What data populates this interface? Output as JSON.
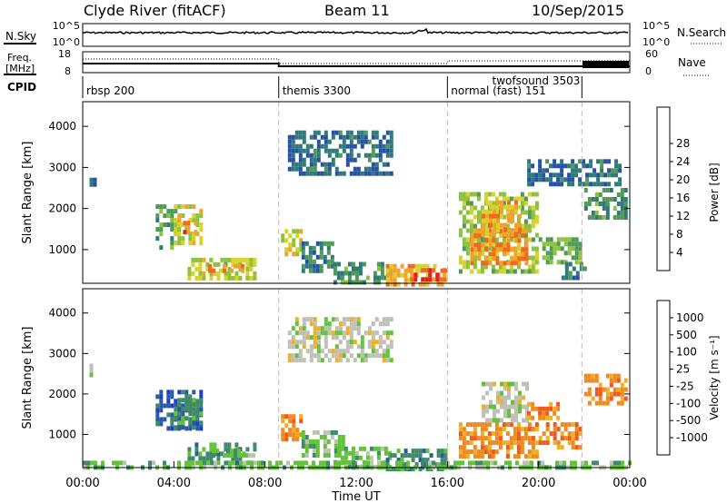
{
  "header": {
    "title": "Clyde River (fitACF)",
    "beam": "Beam 11",
    "date": "10/Sep/2015"
  },
  "top_panels": {
    "nsky_label": "N.Sky",
    "nsearch_label": "N.Search",
    "noise_ticks_left": [
      "10^5",
      "10^0"
    ],
    "noise_ticks_right": [
      "10^5",
      "10^0"
    ],
    "freq_label_1": "Freq.",
    "freq_label_2": "[MHz]",
    "freq_ticks": [
      "18",
      "8"
    ],
    "nave_label": "Nave",
    "nave_ticks": [
      "60",
      "0"
    ],
    "cpid_label": "CPID",
    "cpid_segments": [
      {
        "label": "rbsp 200",
        "start_h": 0.0
      },
      {
        "label": "themis 3300",
        "start_h": 8.6
      },
      {
        "label": "normal (fast) 151",
        "start_h": 16.0
      },
      {
        "label": "twofsound 3503",
        "start_h": 17.8
      }
    ],
    "mode_boundaries_h": [
      8.6,
      16.0,
      21.9
    ]
  },
  "chart_data": [
    {
      "type": "heatmap",
      "title": "",
      "ylabel": "Slant Range [km]",
      "xlabel": "",
      "xlim": [
        0,
        24
      ],
      "ylim": [
        180,
        4600
      ],
      "yticks": [
        "1000",
        "2000",
        "3000",
        "4000"
      ],
      "colorbar_label": "Power [dB]",
      "colorbar_ticks": [
        "4",
        "8",
        "12",
        "16",
        "20",
        "24",
        "28"
      ],
      "colorbar_range": [
        0,
        30
      ],
      "colorbar_colors": [
        "#1f3fd8",
        "#2552a8",
        "#2f7a78",
        "#4f9a56",
        "#8cc23c",
        "#d8d22a",
        "#f2a12a",
        "#ef6a1f",
        "#e0201a"
      ],
      "regions": [
        {
          "t": [
            0.3,
            0.6
          ],
          "r": [
            2450,
            2750
          ],
          "v": 6
        },
        {
          "t": [
            3.2,
            4.0
          ],
          "r": [
            1100,
            2100
          ],
          "v": 11
        },
        {
          "t": [
            4.0,
            5.2
          ],
          "r": [
            1200,
            2100
          ],
          "v": 18
        },
        {
          "t": [
            4.4,
            5.0
          ],
          "r": [
            1300,
            1700
          ],
          "v": 25
        },
        {
          "t": [
            4.6,
            7.6
          ],
          "r": [
            350,
            800
          ],
          "v": 17
        },
        {
          "t": [
            5.5,
            7.0
          ],
          "r": [
            450,
            650
          ],
          "v": 24
        },
        {
          "t": [
            8.7,
            9.6
          ],
          "r": [
            900,
            1500
          ],
          "v": 18
        },
        {
          "t": [
            9.6,
            11.0
          ],
          "r": [
            500,
            1200
          ],
          "v": 8
        },
        {
          "t": [
            11.0,
            13.5
          ],
          "r": [
            250,
            700
          ],
          "v": 10
        },
        {
          "t": [
            13.3,
            16.0
          ],
          "r": [
            200,
            650
          ],
          "v": 22
        },
        {
          "t": [
            14.2,
            15.8
          ],
          "r": [
            250,
            550
          ],
          "v": 27
        },
        {
          "t": [
            16.5,
            20.0
          ],
          "r": [
            500,
            2400
          ],
          "v": 16
        },
        {
          "t": [
            17.0,
            19.5
          ],
          "r": [
            700,
            1500
          ],
          "v": 24
        },
        {
          "t": [
            17.5,
            19.2
          ],
          "r": [
            1400,
            2200
          ],
          "v": 22
        },
        {
          "t": [
            20.0,
            21.8
          ],
          "r": [
            700,
            1300
          ],
          "v": 13
        },
        {
          "t": [
            22.0,
            23.8
          ],
          "r": [
            1800,
            2500
          ],
          "v": 10
        },
        {
          "t": [
            21.0,
            22.0
          ],
          "r": [
            300,
            700
          ],
          "v": 9
        },
        {
          "t": [
            9.0,
            13.5
          ],
          "r": [
            2800,
            3900
          ],
          "v": 6
        },
        {
          "t": [
            19.5,
            23.5
          ],
          "r": [
            2600,
            3200
          ],
          "v": 6
        }
      ]
    },
    {
      "type": "heatmap",
      "title": "",
      "ylabel": "Slant Range [km]",
      "xlabel": "Time UT",
      "xlim": [
        0,
        24
      ],
      "ylim": [
        180,
        4600
      ],
      "xticks": [
        "00:00",
        "04:00",
        "08:00",
        "12:00",
        "16:00",
        "20:00",
        "00:00"
      ],
      "yticks": [
        "1000",
        "2000",
        "3000",
        "4000"
      ],
      "colorbar_label": "Velocity [m s⁻¹]",
      "colorbar_ticks": [
        "1000",
        "500",
        "100",
        "25",
        "-25",
        "-100",
        "-500",
        "-1000"
      ],
      "colorbar_colors": [
        "#1a3fd0",
        "#2c5aa0",
        "#3f8a6a",
        "#61c33a",
        "#c0c0b8",
        "#f0b020",
        "#f08a20",
        "#ef5a1a",
        "#e01818"
      ],
      "regions": [
        {
          "t": [
            0.3,
            0.6
          ],
          "r": [
            2450,
            2750
          ],
          "c": 4
        },
        {
          "t": [
            3.2,
            5.2
          ],
          "r": [
            1100,
            2100
          ],
          "c": 1
        },
        {
          "t": [
            4.0,
            5.2
          ],
          "r": [
            1200,
            1900
          ],
          "c": 2
        },
        {
          "t": [
            4.6,
            7.6
          ],
          "r": [
            350,
            800
          ],
          "c": 2
        },
        {
          "t": [
            5.5,
            7.5
          ],
          "r": [
            450,
            650
          ],
          "c": 3
        },
        {
          "t": [
            8.7,
            9.6
          ],
          "r": [
            900,
            1500
          ],
          "c": 6
        },
        {
          "t": [
            9.6,
            11.5
          ],
          "r": [
            500,
            1100
          ],
          "c": 3
        },
        {
          "t": [
            11.0,
            13.5
          ],
          "r": [
            250,
            700
          ],
          "c": 3
        },
        {
          "t": [
            13.3,
            16.0
          ],
          "r": [
            200,
            650
          ],
          "c": 2
        },
        {
          "t": [
            16.5,
            20.0
          ],
          "r": [
            500,
            1300
          ],
          "c": 6
        },
        {
          "t": [
            17.5,
            19.5
          ],
          "r": [
            1300,
            2300
          ],
          "c": 4
        },
        {
          "t": [
            19.5,
            20.8
          ],
          "r": [
            1400,
            1800
          ],
          "c": 6
        },
        {
          "t": [
            20.0,
            21.8
          ],
          "r": [
            700,
            1300
          ],
          "c": 6
        },
        {
          "t": [
            22.0,
            23.8
          ],
          "r": [
            1800,
            2500
          ],
          "c": 6
        },
        {
          "t": [
            0.0,
            24.0
          ],
          "r": [
            180,
            350
          ],
          "c": 3
        },
        {
          "t": [
            9.0,
            13.5
          ],
          "r": [
            2800,
            3900
          ],
          "c": 4
        }
      ]
    }
  ]
}
